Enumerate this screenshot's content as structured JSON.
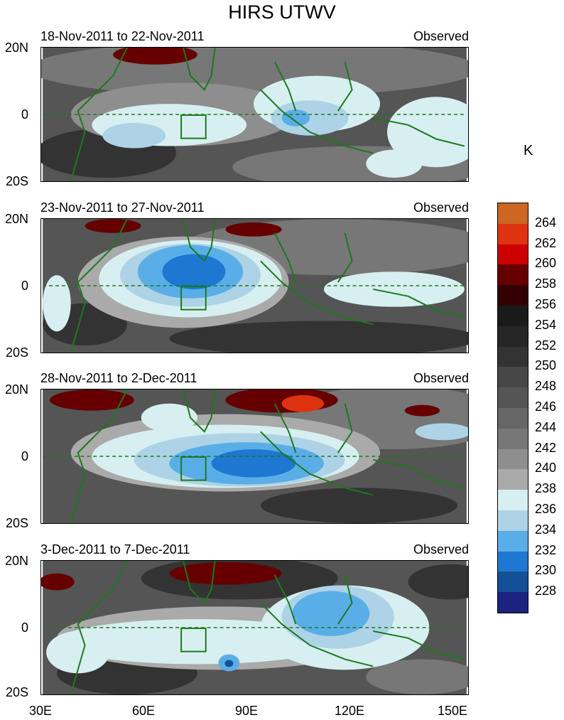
{
  "title": "HIRS UTWV",
  "unit": "K",
  "panels": [
    {
      "date_range": "18-Nov-2011 to 22-Nov-2011",
      "label": "Observed"
    },
    {
      "date_range": "23-Nov-2011 to 27-Nov-2011",
      "label": "Observed"
    },
    {
      "date_range": "28-Nov-2011 to 2-Dec-2011",
      "label": "Observed"
    },
    {
      "date_range": "3-Dec-2011 to 7-Dec-2011",
      "label": "Observed"
    }
  ],
  "y_ticks": [
    "20N",
    "0",
    "20S"
  ],
  "x_ticks": [
    "30E",
    "60E",
    "90E",
    "120E",
    "150E"
  ],
  "colorbar": {
    "levels": [
      "264",
      "262",
      "260",
      "258",
      "256",
      "254",
      "252",
      "250",
      "248",
      "246",
      "244",
      "242",
      "240",
      "238",
      "236",
      "234",
      "232",
      "230",
      "228"
    ],
    "colors": [
      "#cc6622",
      "#dd3311",
      "#cc0000",
      "#660000",
      "#330000",
      "#1a1a1a",
      "#262626",
      "#333333",
      "#474747",
      "#555555",
      "#666666",
      "#777777",
      "#8e8e8e",
      "#aaaaaa",
      "#d7eff0",
      "#aed3e6",
      "#5aaee8",
      "#1e77d0",
      "#145096",
      "#1a237e"
    ]
  },
  "colors": {
    "coast": "#1a7a1a",
    "box": "#1a7a1a"
  }
}
